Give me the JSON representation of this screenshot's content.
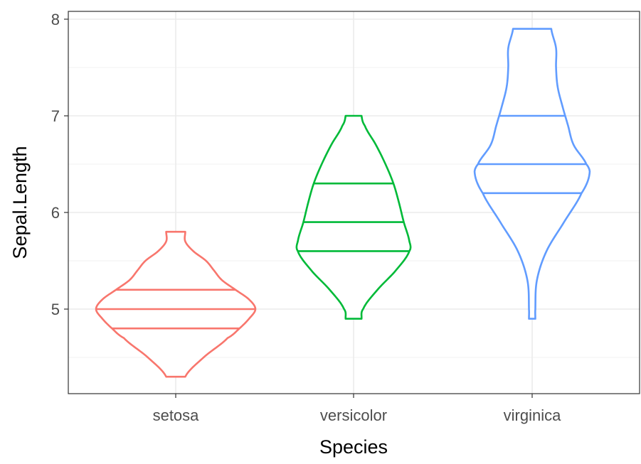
{
  "chart_data": {
    "type": "violin",
    "xlabel": "Species",
    "ylabel": "Sepal.Length",
    "categories": [
      "setosa",
      "versicolor",
      "virginica"
    ],
    "y_ticks": [
      5,
      6,
      7,
      8
    ],
    "ylim": [
      4.1,
      8.1
    ],
    "grid": true,
    "legend": "none",
    "series": [
      {
        "category": "setosa",
        "color": "#F8766D",
        "min": 4.3,
        "max": 5.8,
        "quantiles": [
          4.8,
          5.0,
          5.2
        ],
        "profile": [
          [
            4.3,
            0.12
          ],
          [
            4.5,
            0.35
          ],
          [
            4.7,
            0.65
          ],
          [
            4.8,
            0.8
          ],
          [
            4.9,
            0.92
          ],
          [
            5.0,
            1.0
          ],
          [
            5.1,
            0.92
          ],
          [
            5.2,
            0.75
          ],
          [
            5.3,
            0.58
          ],
          [
            5.4,
            0.48
          ],
          [
            5.5,
            0.38
          ],
          [
            5.6,
            0.22
          ],
          [
            5.7,
            0.12
          ],
          [
            5.8,
            0.12
          ]
        ]
      },
      {
        "category": "versicolor",
        "color": "#00BA38",
        "min": 4.9,
        "max": 7.0,
        "quantiles": [
          5.6,
          5.9,
          6.3
        ],
        "profile": [
          [
            4.9,
            0.1
          ],
          [
            5.0,
            0.12
          ],
          [
            5.2,
            0.3
          ],
          [
            5.4,
            0.53
          ],
          [
            5.6,
            0.7
          ],
          [
            5.7,
            0.7
          ],
          [
            5.9,
            0.63
          ],
          [
            6.1,
            0.57
          ],
          [
            6.3,
            0.5
          ],
          [
            6.5,
            0.4
          ],
          [
            6.7,
            0.28
          ],
          [
            6.9,
            0.14
          ],
          [
            7.0,
            0.1
          ]
        ]
      },
      {
        "category": "virginica",
        "color": "#619CFF",
        "min": 4.9,
        "max": 7.9,
        "quantiles": [
          6.2,
          6.5,
          7.0
        ],
        "profile": [
          [
            4.9,
            0.04
          ],
          [
            5.0,
            0.04
          ],
          [
            5.3,
            0.06
          ],
          [
            5.6,
            0.18
          ],
          [
            5.9,
            0.4
          ],
          [
            6.2,
            0.62
          ],
          [
            6.4,
            0.72
          ],
          [
            6.5,
            0.68
          ],
          [
            6.7,
            0.52
          ],
          [
            6.9,
            0.45
          ],
          [
            7.1,
            0.38
          ],
          [
            7.3,
            0.32
          ],
          [
            7.5,
            0.3
          ],
          [
            7.7,
            0.3
          ],
          [
            7.9,
            0.24
          ]
        ]
      }
    ]
  }
}
